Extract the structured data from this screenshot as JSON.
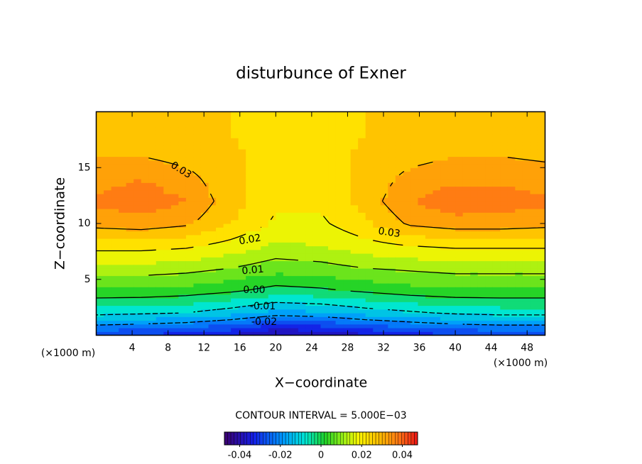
{
  "chart_data": {
    "type": "contour",
    "title": "disturbunce of Exner",
    "x_label": "X−coordinate",
    "y_label": "Z−coordinate",
    "x_unit_label": "(×1000 m)",
    "y_unit_label": "(×1000 m)",
    "contour_interval_label": "CONTOUR INTERVAL = 5.000E−03",
    "x": [
      0,
      5,
      10,
      15,
      20,
      25,
      30,
      35,
      40,
      45,
      50
    ],
    "y": [
      0,
      2,
      4,
      6,
      8,
      10,
      12,
      14,
      16,
      18,
      20
    ],
    "z": [
      [
        -0.03,
        -0.031,
        -0.033,
        -0.036,
        -0.042,
        -0.04,
        -0.036,
        -0.033,
        -0.031,
        -0.03,
        -0.03
      ],
      [
        -0.008,
        -0.009,
        -0.01,
        -0.013,
        -0.017,
        -0.016,
        -0.013,
        -0.011,
        -0.009,
        -0.008,
        -0.008
      ],
      [
        0.004,
        0.004,
        0.003,
        0.001,
        -0.002,
        -0.001,
        0.001,
        0.003,
        0.004,
        0.004,
        0.004
      ],
      [
        0.013,
        0.013,
        0.012,
        0.01,
        0.007,
        0.008,
        0.01,
        0.011,
        0.012,
        0.012,
        0.012
      ],
      [
        0.022,
        0.022,
        0.021,
        0.018,
        0.014,
        0.015,
        0.018,
        0.02,
        0.021,
        0.021,
        0.021
      ],
      [
        0.032,
        0.033,
        0.031,
        0.025,
        0.019,
        0.019,
        0.024,
        0.031,
        0.033,
        0.033,
        0.032
      ],
      [
        0.036,
        0.038,
        0.035,
        0.027,
        0.021,
        0.021,
        0.027,
        0.035,
        0.038,
        0.037,
        0.036
      ],
      [
        0.033,
        0.035,
        0.032,
        0.026,
        0.022,
        0.022,
        0.026,
        0.032,
        0.034,
        0.034,
        0.033
      ],
      [
        0.03,
        0.03,
        0.028,
        0.026,
        0.023,
        0.023,
        0.026,
        0.028,
        0.03,
        0.03,
        0.029
      ],
      [
        0.028,
        0.028,
        0.027,
        0.025,
        0.023,
        0.023,
        0.025,
        0.027,
        0.028,
        0.028,
        0.028
      ],
      [
        0.027,
        0.027,
        0.026,
        0.025,
        0.023,
        0.023,
        0.025,
        0.026,
        0.027,
        0.027,
        0.027
      ]
    ],
    "xlim": [
      0,
      50
    ],
    "ylim": [
      0,
      20
    ],
    "xticks": [
      4,
      8,
      12,
      16,
      20,
      24,
      28,
      32,
      36,
      40,
      44,
      48
    ],
    "yticks": [
      5,
      10,
      15
    ],
    "contour_labels": [
      0.03,
      0.03,
      0.02,
      0.01,
      {
        "value": 0,
        "label": "0.00"
      },
      -0.01,
      -0.02
    ],
    "clim": [
      -0.0475,
      0.0475
    ],
    "colorbar_ticks": [
      -0.04,
      -0.02,
      0,
      0.02,
      0.04
    ]
  }
}
